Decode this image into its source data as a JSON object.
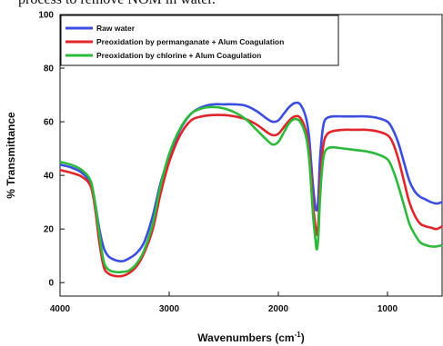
{
  "caption_fragment": "process to remove NOM in water.",
  "chart_data": {
    "type": "line",
    "xlabel": "Wavenumbers (cm",
    "xlabel_sup": "-1",
    "xlabel_close": ")",
    "ylabel": "% Transmittance",
    "xlim": [
      4000,
      500
    ],
    "ylim": [
      -5,
      100
    ],
    "xticks": [
      4000,
      3000,
      2000,
      1000
    ],
    "yticks": [
      0,
      20,
      40,
      60,
      80,
      100
    ],
    "legend_position": "top-left",
    "series": [
      {
        "name": "Raw water",
        "color": "#3c4ee0",
        "x": [
          4000,
          3900,
          3800,
          3720,
          3680,
          3640,
          3600,
          3560,
          3500,
          3430,
          3370,
          3300,
          3230,
          3150,
          3080,
          3000,
          2900,
          2800,
          2700,
          2600,
          2500,
          2400,
          2300,
          2200,
          2100,
          2050,
          2000,
          1950,
          1900,
          1850,
          1800,
          1750,
          1720,
          1700,
          1680,
          1660,
          1650,
          1640,
          1630,
          1620,
          1600,
          1580,
          1550,
          1500,
          1400,
          1300,
          1200,
          1100,
          1000,
          950,
          900,
          850,
          800,
          750,
          700,
          650,
          600,
          550,
          500
        ],
        "y": [
          44,
          43,
          41,
          37,
          30,
          20,
          13,
          10,
          8.5,
          8,
          9,
          11,
          15,
          25,
          37,
          47,
          57,
          63,
          65.5,
          66.5,
          66.5,
          66.5,
          66,
          64,
          61,
          60,
          60.5,
          63,
          65.5,
          67,
          66.5,
          62,
          55,
          45,
          35,
          28,
          27,
          28,
          35,
          45,
          55,
          60,
          61.5,
          62,
          62,
          62,
          62,
          61.5,
          60,
          57,
          52,
          45,
          38,
          34,
          32,
          31,
          30,
          29.5,
          30
        ]
      },
      {
        "name": "Preoxidation by permanganate + Alum Coagulation",
        "color": "#e0262b",
        "x": [
          4000,
          3900,
          3800,
          3720,
          3680,
          3640,
          3600,
          3560,
          3500,
          3430,
          3370,
          3300,
          3230,
          3150,
          3080,
          3000,
          2900,
          2800,
          2700,
          2600,
          2500,
          2400,
          2300,
          2200,
          2100,
          2050,
          2000,
          1950,
          1900,
          1850,
          1800,
          1750,
          1720,
          1700,
          1680,
          1660,
          1650,
          1640,
          1630,
          1620,
          1600,
          1580,
          1550,
          1500,
          1400,
          1300,
          1200,
          1100,
          1000,
          950,
          900,
          850,
          800,
          750,
          700,
          650,
          600,
          550,
          500
        ],
        "y": [
          42,
          41,
          39.5,
          36,
          28,
          15,
          6,
          3.5,
          2.5,
          2.5,
          3.5,
          6,
          11,
          20,
          33,
          45,
          55,
          60.5,
          62,
          62.5,
          62.5,
          62,
          61,
          59,
          56,
          55,
          55.5,
          58,
          60.5,
          62,
          61.5,
          57,
          50,
          40,
          28,
          21,
          18,
          19,
          25,
          35,
          47,
          53,
          55.5,
          56.5,
          57,
          57,
          57,
          56.5,
          55,
          52,
          46,
          38,
          30,
          25,
          22,
          21,
          20.5,
          20,
          21
        ]
      },
      {
        "name": "Preoxidation by chlorine + Alum Coagulation",
        "color": "#2dba3c",
        "x": [
          4000,
          3900,
          3800,
          3720,
          3680,
          3640,
          3600,
          3560,
          3500,
          3430,
          3370,
          3300,
          3230,
          3150,
          3080,
          3000,
          2900,
          2800,
          2700,
          2600,
          2500,
          2400,
          2300,
          2200,
          2100,
          2050,
          2000,
          1950,
          1900,
          1850,
          1800,
          1750,
          1720,
          1700,
          1680,
          1660,
          1650,
          1640,
          1630,
          1620,
          1600,
          1580,
          1550,
          1500,
          1400,
          1300,
          1200,
          1100,
          1000,
          950,
          900,
          850,
          800,
          750,
          700,
          650,
          600,
          550,
          500
        ],
        "y": [
          45,
          44,
          42,
          38,
          30,
          18,
          8,
          5,
          4,
          4,
          4.5,
          7,
          12,
          22,
          36,
          48,
          57.5,
          63,
          65,
          65.5,
          65,
          63.5,
          61,
          57,
          53,
          51.5,
          52.5,
          56,
          59.5,
          61,
          60,
          55,
          47,
          36,
          24,
          16,
          12.5,
          14,
          20,
          30,
          42,
          48,
          50,
          50.5,
          50,
          49.5,
          49,
          48,
          46,
          42,
          36,
          29,
          22,
          18,
          15,
          14,
          13.5,
          13.5,
          14
        ]
      }
    ]
  }
}
